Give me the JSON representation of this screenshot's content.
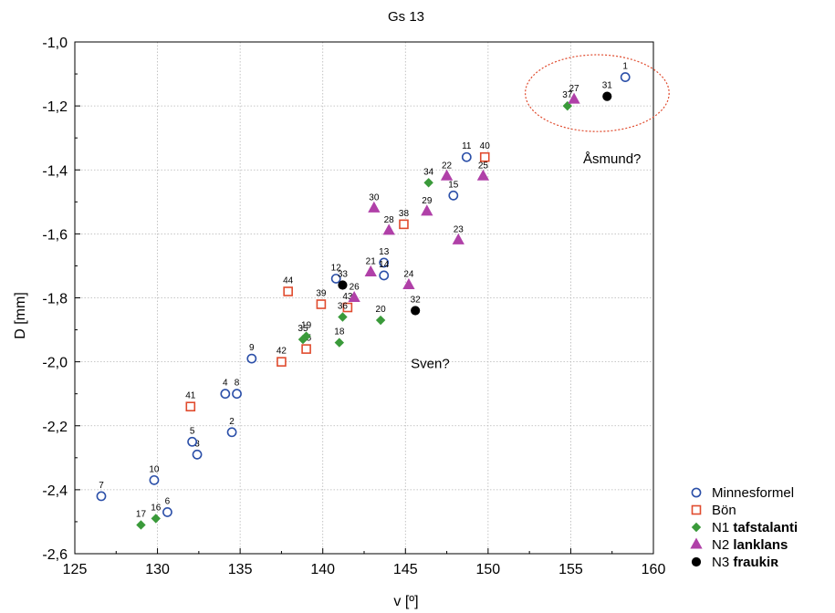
{
  "chart_data": {
    "type": "scatter",
    "title": "Gs 13",
    "xlabel": "v [º]",
    "ylabel": "D [mm]",
    "xlim": [
      125,
      160
    ],
    "ylim": [
      -2.6,
      -1.0
    ],
    "xticks": [
      125,
      130,
      135,
      140,
      145,
      150,
      155,
      160
    ],
    "xtick_labels": [
      "125",
      "130",
      "135",
      "140",
      "145",
      "150",
      "155",
      "160"
    ],
    "yticks": [
      -1.0,
      -1.2,
      -1.4,
      -1.6,
      -1.8,
      -2.0,
      -2.2,
      -2.4,
      -2.6
    ],
    "ytick_labels": [
      "-1,0",
      "-1,2",
      "-1,4",
      "-1,6",
      "-1,8",
      "-2,0",
      "-2,2",
      "-2,4",
      "-2,6"
    ],
    "grid": true,
    "legend_position": "bottom-right outside",
    "series": [
      {
        "name": "Minnesformel",
        "name_prefix": "",
        "name_bold": "",
        "marker": "circle-open",
        "color": "#2b4fa8",
        "points": [
          {
            "label": "1",
            "x": 158.3,
            "y": -1.11
          },
          {
            "label": "2",
            "x": 134.5,
            "y": -2.22
          },
          {
            "label": "3",
            "x": 132.4,
            "y": -2.29
          },
          {
            "label": "4",
            "x": 134.1,
            "y": -2.1
          },
          {
            "label": "5",
            "x": 132.1,
            "y": -2.25
          },
          {
            "label": "6",
            "x": 130.6,
            "y": -2.47
          },
          {
            "label": "7",
            "x": 126.6,
            "y": -2.42
          },
          {
            "label": "8",
            "x": 134.8,
            "y": -2.1
          },
          {
            "label": "9",
            "x": 135.7,
            "y": -1.99
          },
          {
            "label": "10",
            "x": 129.8,
            "y": -2.37
          },
          {
            "label": "11",
            "x": 148.7,
            "y": -1.36
          },
          {
            "label": "12",
            "x": 140.8,
            "y": -1.74
          },
          {
            "label": "13",
            "x": 143.7,
            "y": -1.69
          },
          {
            "label": "14",
            "x": 143.7,
            "y": -1.73
          },
          {
            "label": "15",
            "x": 147.9,
            "y": -1.48
          }
        ]
      },
      {
        "name": "Bön",
        "name_prefix": "",
        "name_bold": "",
        "marker": "square-open",
        "color": "#e04b2e",
        "points": [
          {
            "label": "38",
            "x": 144.9,
            "y": -1.57
          },
          {
            "label": "39",
            "x": 139.9,
            "y": -1.82
          },
          {
            "label": "40",
            "x": 149.8,
            "y": -1.36
          },
          {
            "label": "41",
            "x": 132.0,
            "y": -2.14
          },
          {
            "label": "42",
            "x": 137.5,
            "y": -2.0
          },
          {
            "label": "43",
            "x": 141.5,
            "y": -1.83
          },
          {
            "label": "44",
            "x": 137.9,
            "y": -1.78
          },
          {
            "label": "45",
            "x": 139.0,
            "y": -1.96
          }
        ]
      },
      {
        "name": "N1 tafstalanti",
        "name_prefix": "N1 ",
        "name_bold": "tafstalanti",
        "marker": "diamond",
        "color": "#3a9a3a",
        "points": [
          {
            "label": "16",
            "x": 129.9,
            "y": -2.49
          },
          {
            "label": "17",
            "x": 129.0,
            "y": -2.51
          },
          {
            "label": "18",
            "x": 141.0,
            "y": -1.94
          },
          {
            "label": "19",
            "x": 139.0,
            "y": -1.92
          },
          {
            "label": "20",
            "x": 143.5,
            "y": -1.87
          },
          {
            "label": "34",
            "x": 146.4,
            "y": -1.44
          },
          {
            "label": "35",
            "x": 138.8,
            "y": -1.93
          },
          {
            "label": "36",
            "x": 141.2,
            "y": -1.86
          },
          {
            "label": "37",
            "x": 154.8,
            "y": -1.2
          }
        ]
      },
      {
        "name": "N2 lanklans",
        "name_prefix": "N2 ",
        "name_bold": "lanklans",
        "marker": "triangle",
        "color": "#b040a8",
        "points": [
          {
            "label": "21",
            "x": 142.9,
            "y": -1.72
          },
          {
            "label": "22",
            "x": 147.5,
            "y": -1.42
          },
          {
            "label": "23",
            "x": 148.2,
            "y": -1.62
          },
          {
            "label": "24",
            "x": 145.2,
            "y": -1.76
          },
          {
            "label": "25",
            "x": 149.7,
            "y": -1.42
          },
          {
            "label": "26",
            "x": 141.9,
            "y": -1.8
          },
          {
            "label": "27",
            "x": 155.2,
            "y": -1.18
          },
          {
            "label": "28",
            "x": 144.0,
            "y": -1.59
          },
          {
            "label": "29",
            "x": 146.3,
            "y": -1.53
          },
          {
            "label": "30",
            "x": 143.1,
            "y": -1.52
          }
        ]
      },
      {
        "name": "N3 fraukiʀ",
        "name_prefix": "N3 ",
        "name_bold": "fraukiʀ",
        "marker": "circle-filled",
        "color": "#000000",
        "points": [
          {
            "label": "31",
            "x": 157.2,
            "y": -1.17
          },
          {
            "label": "32",
            "x": 145.6,
            "y": -1.84
          },
          {
            "label": "33",
            "x": 141.2,
            "y": -1.76
          }
        ]
      }
    ],
    "annotations": [
      {
        "text": "Åsmund?",
        "x": 157.5,
        "y": -1.38
      },
      {
        "text": "Sven?",
        "x": 146.5,
        "y": -2.02
      }
    ],
    "highlight_ellipse": {
      "color": "#e04b2e",
      "style": "dotted",
      "cx": 156.6,
      "cy": -1.16,
      "rx": 4.35,
      "ry": 0.12
    }
  }
}
